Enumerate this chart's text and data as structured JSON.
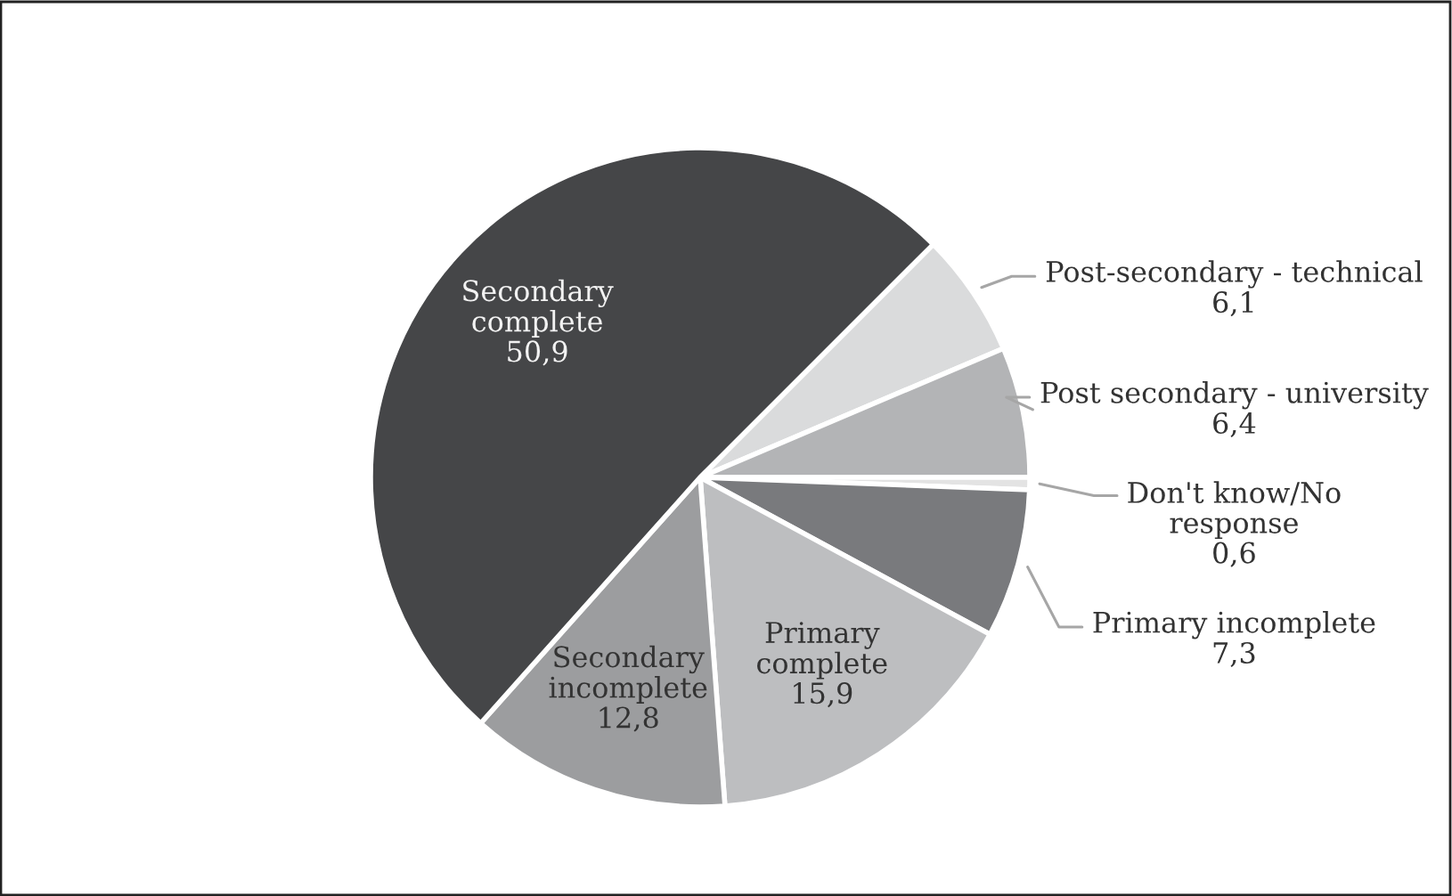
{
  "chart_data": {
    "type": "pie",
    "categories": [
      "Post-secondary - technical",
      "Post secondary - university",
      "Don't know/No\nresponse",
      "Primary incomplete",
      "Primary\ncomplete",
      "Secondary\nincomplete",
      "Secondary\ncomplete"
    ],
    "values": [
      6.1,
      6.4,
      0.6,
      7.3,
      15.9,
      12.8,
      50.9
    ],
    "colors": [
      "#dadbdc",
      "#b3b4b6",
      "#e3e3e3",
      "#797a7d",
      "#bdbec0",
      "#9c9d9f",
      "#454648"
    ],
    "value_labels": [
      "6,1",
      "6,4",
      "0,6",
      "7,3",
      "15,9",
      "12,8",
      "50,9"
    ]
  }
}
